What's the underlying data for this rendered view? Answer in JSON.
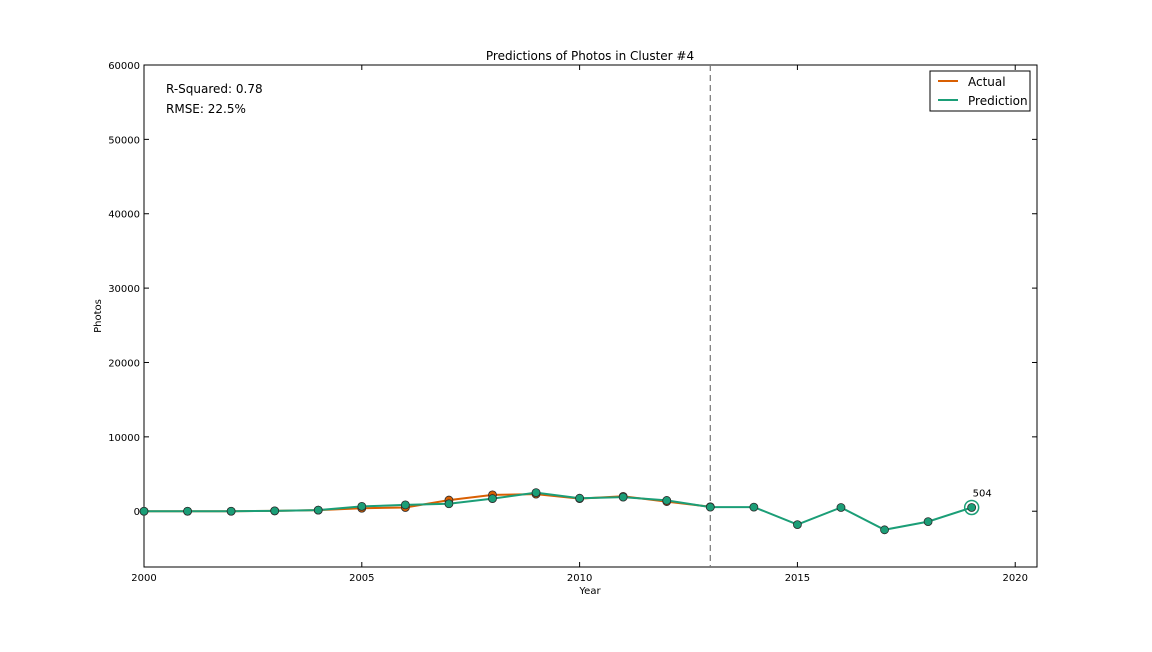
{
  "chart_data": {
    "type": "line",
    "title": "Predictions of Photos in Cluster #4",
    "xlabel": "Year",
    "ylabel": "Photos",
    "xlim": [
      2000,
      2020.5
    ],
    "ylim": [
      -7500,
      60000
    ],
    "xticks": [
      2000,
      2005,
      2010,
      2015,
      2020
    ],
    "yticks": [
      0,
      10000,
      20000,
      30000,
      40000,
      50000,
      60000
    ],
    "grid": false,
    "legend_position": "top-right",
    "cutoff_year": 2013,
    "stats": [
      "R-Squared: 0.78",
      "RMSE: 22.5%"
    ],
    "series": [
      {
        "name": "Actual",
        "color": "#d95f02",
        "x": [
          2000,
          2001,
          2002,
          2003,
          2004,
          2005,
          2006,
          2007,
          2008,
          2009,
          2010,
          2011,
          2012,
          2013
        ],
        "values": [
          0,
          0,
          0,
          50,
          150,
          400,
          500,
          1500,
          2200,
          2300,
          1700,
          2000,
          1300,
          600
        ]
      },
      {
        "name": "Prediction",
        "color": "#1b9e77",
        "x": [
          2000,
          2001,
          2002,
          2003,
          2004,
          2005,
          2006,
          2007,
          2008,
          2009,
          2010,
          2011,
          2012,
          2013,
          2014,
          2015,
          2016,
          2017,
          2018,
          2019
        ],
        "values": [
          0,
          0,
          0,
          50,
          150,
          650,
          850,
          1000,
          1700,
          2500,
          1750,
          1900,
          1450,
          550,
          550,
          -1800,
          504,
          -2500,
          -1400,
          504
        ]
      }
    ],
    "annotation": {
      "x": 2019,
      "y": 504,
      "text": "504"
    }
  }
}
